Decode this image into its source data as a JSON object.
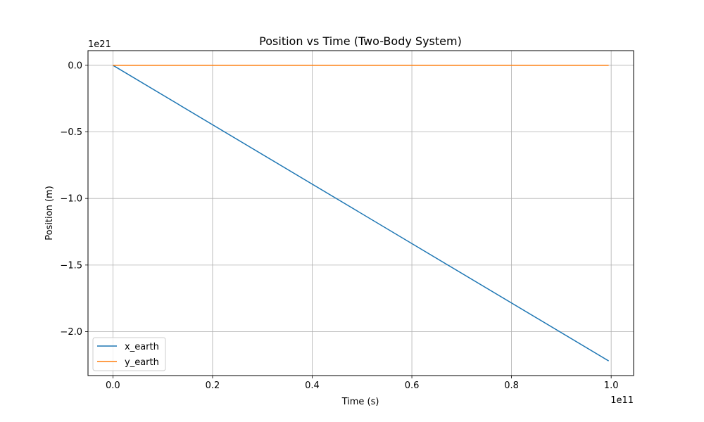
{
  "chart_data": {
    "type": "line",
    "title": "Position vs Time (Two-Body System)",
    "xlabel": "Time (s)",
    "ylabel": "Position (m)",
    "x_offset_text": "1e11",
    "y_offset_text": "1e21",
    "xlim": [
      -0.05,
      1.045
    ],
    "ylim": [
      -2.33,
      0.11
    ],
    "x_ticks": [
      0.0,
      0.2,
      0.4,
      0.6,
      0.8,
      1.0
    ],
    "x_tick_labels": [
      "0.0",
      "0.2",
      "0.4",
      "0.6",
      "0.8",
      "1.0"
    ],
    "y_ticks": [
      0.0,
      -0.5,
      -1.0,
      -1.5,
      -2.0
    ],
    "y_tick_labels": [
      "0.0",
      "−0.5",
      "−1.0",
      "−1.5",
      "−2.0"
    ],
    "grid": true,
    "legend_position": "lower-left",
    "series": [
      {
        "name": "x_earth",
        "color": "#1f77b4",
        "x": [
          0.0,
          0.995
        ],
        "y": [
          0.0,
          -2.22
        ]
      },
      {
        "name": "y_earth",
        "color": "#ff7f0e",
        "x": [
          0.0,
          0.995
        ],
        "y": [
          0.0,
          0.0
        ]
      }
    ]
  }
}
